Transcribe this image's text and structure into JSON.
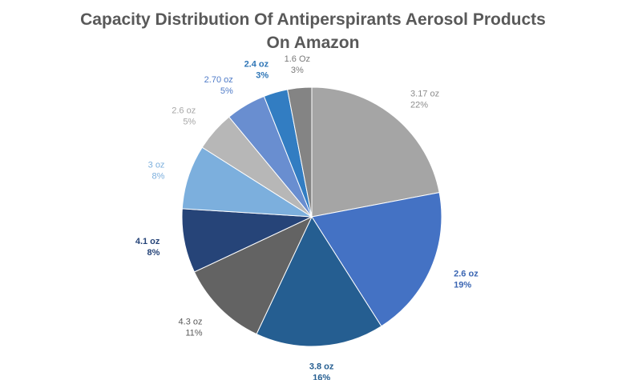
{
  "chart_data": {
    "type": "pie",
    "title_lines": [
      "Capacity Distribution Of Antiperspirants Aerosol Products",
      "On Amazon"
    ],
    "start_angle_deg": 0,
    "direction": "clockwise",
    "slices": [
      {
        "name": "3.17 oz",
        "percent_label": "22%",
        "value": 22,
        "color": "#a5a5a5",
        "label_color": "#8c8c8c",
        "bold": false
      },
      {
        "name": "2.6 oz",
        "percent_label": "19%",
        "value": 19,
        "color": "#4472c4",
        "label_color": "#3b66b3",
        "bold": true
      },
      {
        "name": "3.8 oz",
        "percent_label": "16%",
        "value": 16,
        "color": "#255e91",
        "label_color": "#255e91",
        "bold": true
      },
      {
        "name": "4.3 oz",
        "percent_label": "11%",
        "value": 11,
        "color": "#636363",
        "label_color": "#595959",
        "bold": false
      },
      {
        "name": "4.1 oz",
        "percent_label": "8%",
        "value": 8,
        "color": "#264478",
        "label_color": "#264478",
        "bold": true
      },
      {
        "name": "3 oz",
        "percent_label": "8%",
        "value": 8,
        "color": "#7cafdd",
        "label_color": "#7cafdd",
        "bold": false
      },
      {
        "name": "2.6 oz",
        "percent_label": "5%",
        "value": 5,
        "color": "#b7b7b7",
        "label_color": "#a6a6a6",
        "bold": false
      },
      {
        "name": "2.70 oz",
        "percent_label": "5%",
        "value": 5,
        "color": "#698ed0",
        "label_color": "#4f7bc8",
        "bold": false
      },
      {
        "name": "2.4 oz",
        "percent_label": "3%",
        "value": 3,
        "color": "#327dc2",
        "label_color": "#2e75b6",
        "bold": true
      },
      {
        "name": "1.6 Oz",
        "percent_label": "3%",
        "value": 3,
        "color": "#848484",
        "label_color": "#7a7a7a",
        "bold": false
      }
    ]
  }
}
